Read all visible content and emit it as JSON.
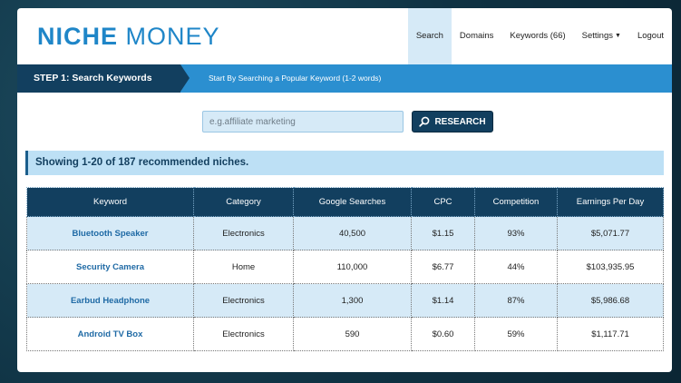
{
  "brand": {
    "bold": "NICHE",
    "light": " MONEY"
  },
  "nav": {
    "search": "Search",
    "domains": "Domains",
    "keywords": "Keywords (66)",
    "settings": "Settings",
    "logout": "Logout"
  },
  "step": {
    "label": "STEP 1: Search Keywords",
    "hint": "Start By Searching a Popular Keyword (1-2 words)"
  },
  "search": {
    "placeholder": "e.g.affiliate marketing",
    "value": "",
    "button": "RESEARCH"
  },
  "results": {
    "summary": "Showing 1-20 of 187 recommended niches.",
    "headers": [
      "Keyword",
      "Category",
      "Google Searches",
      "CPC",
      "Competition",
      "Earnings Per Day"
    ],
    "rows": [
      [
        "Bluetooth Speaker",
        "Electronics",
        "40,500",
        "$1.15",
        "93%",
        "$5,071.77"
      ],
      [
        "Security Camera",
        "Home",
        "110,000",
        "$6.77",
        "44%",
        "$103,935.95"
      ],
      [
        "Earbud Headphone",
        "Electronics",
        "1,300",
        "$1.14",
        "87%",
        "$5,986.68"
      ],
      [
        "Android TV Box",
        "Electronics",
        "590",
        "$0.60",
        "59%",
        "$1,117.71"
      ]
    ]
  },
  "colors": {
    "brand": "#1f86c8",
    "navy": "#123f5f",
    "accent": "#2b8fd0",
    "light_row": "#d6eaf7"
  }
}
